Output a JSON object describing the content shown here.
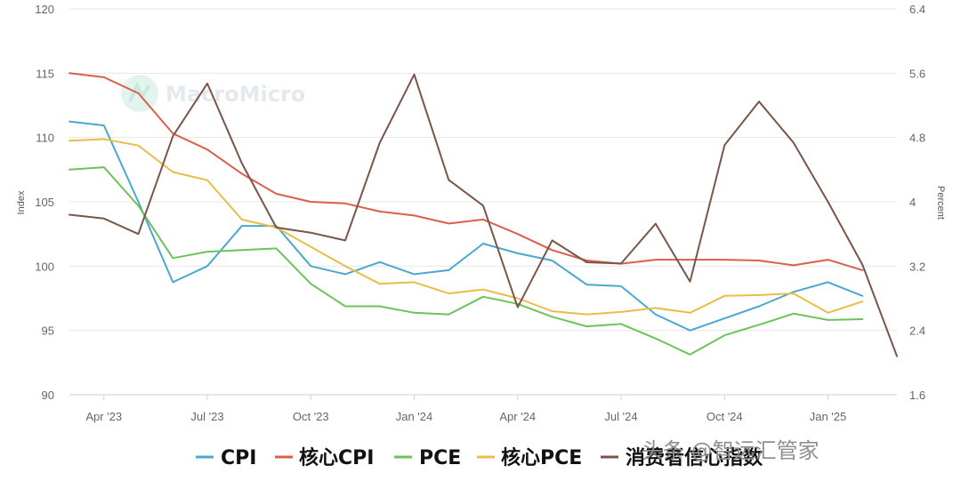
{
  "chart_data": {
    "type": "line",
    "watermark": "MacroMicro",
    "credit": "头条 @智远汇管家",
    "colors": {
      "CPI": "#4aa8d0",
      "核心CPI": "#d9604a",
      "PCE": "#6cc35a",
      "核心PCE": "#e8bd4a",
      "消费者信心指数": "#7a554a",
      "grid": "#e7e7e7",
      "axis": "#d0d0d0"
    },
    "left_axis": {
      "label": "Index",
      "ylim": [
        90,
        120
      ],
      "ticks": [
        "90",
        "95",
        "100",
        "105",
        "110",
        "115",
        "120"
      ]
    },
    "right_axis": {
      "label": "Percent",
      "ylim": [
        1.6,
        6.4
      ],
      "ticks": [
        "1.6",
        "2.4",
        "3.2",
        "4",
        "4.8",
        "5.6",
        "6.4"
      ]
    },
    "x_ticks": [
      {
        "label": "Apr '23",
        "month": 3
      },
      {
        "label": "Jul '23",
        "month": 6
      },
      {
        "label": "Oct '23",
        "month": 9
      },
      {
        "label": "Jan '24",
        "month": 12
      },
      {
        "label": "Apr '24",
        "month": 15
      },
      {
        "label": "Jul '24",
        "month": 18
      },
      {
        "label": "Oct '24",
        "month": 21
      },
      {
        "label": "Jan '25",
        "month": 24
      }
    ],
    "x_range": [
      2,
      26
    ],
    "x_start": "2023-03",
    "series": [
      {
        "name": "CPI",
        "axis": "right",
        "start_month": 2,
        "values": [
          5.0,
          4.95,
          4.0,
          3.0,
          3.2,
          3.7,
          3.7,
          3.2,
          3.1,
          3.25,
          3.1,
          3.15,
          3.48,
          3.36,
          3.27,
          2.97,
          2.95,
          2.6,
          2.4,
          2.55,
          2.7,
          2.88,
          3.0,
          2.83
        ]
      },
      {
        "name": "核心CPI",
        "axis": "right",
        "start_month": 2,
        "values": [
          5.6,
          5.55,
          5.35,
          4.85,
          4.65,
          4.35,
          4.1,
          4.0,
          3.98,
          3.88,
          3.83,
          3.73,
          3.78,
          3.6,
          3.4,
          3.27,
          3.23,
          3.28,
          3.28,
          3.28,
          3.27,
          3.21,
          3.28,
          3.15
        ]
      },
      {
        "name": "PCE",
        "axis": "right",
        "start_month": 2,
        "values": [
          4.4,
          4.43,
          3.95,
          3.3,
          3.38,
          3.4,
          3.42,
          2.98,
          2.7,
          2.7,
          2.62,
          2.6,
          2.82,
          2.73,
          2.57,
          2.45,
          2.48,
          2.3,
          2.1,
          2.34,
          2.47,
          2.61,
          2.53,
          2.54
        ]
      },
      {
        "name": "核心PCE",
        "axis": "right",
        "start_month": 2,
        "values": [
          4.76,
          4.78,
          4.7,
          4.37,
          4.27,
          3.78,
          3.68,
          3.44,
          3.2,
          2.98,
          3.0,
          2.86,
          2.91,
          2.8,
          2.64,
          2.6,
          2.63,
          2.68,
          2.62,
          2.83,
          2.84,
          2.86,
          2.62,
          2.76
        ]
      },
      {
        "name": "消费者信心指数",
        "axis": "left",
        "start_month": 2,
        "values": [
          104.0,
          103.7,
          102.5,
          110.1,
          114.2,
          108.0,
          103.0,
          102.6,
          102.0,
          109.6,
          114.9,
          106.7,
          104.7,
          96.8,
          102.0,
          100.3,
          100.2,
          103.3,
          98.8,
          109.4,
          112.8,
          109.6,
          105.0,
          100.1,
          93.0
        ]
      }
    ]
  }
}
